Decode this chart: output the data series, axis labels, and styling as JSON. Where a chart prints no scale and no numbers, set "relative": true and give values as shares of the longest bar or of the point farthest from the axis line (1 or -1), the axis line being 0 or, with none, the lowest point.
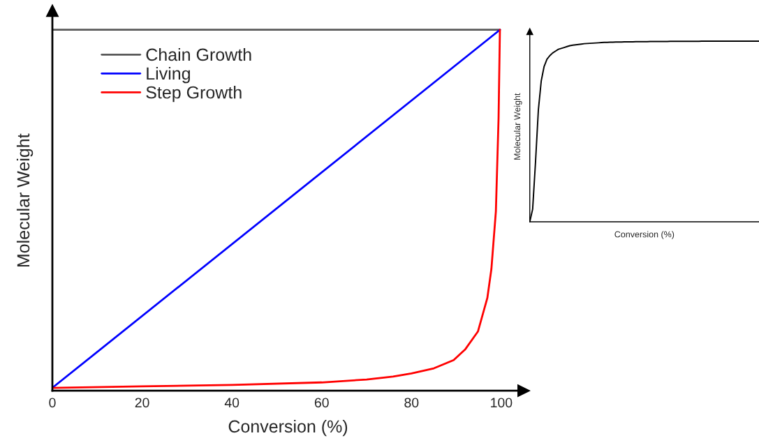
{
  "chart_data": [
    {
      "type": "line",
      "xlabel": "Conversion (%)",
      "ylabel": "Molecular Weight",
      "relative": true,
      "xlim": [
        0,
        105
      ],
      "xticks": [
        0,
        20,
        40,
        60,
        80,
        100
      ],
      "legend": "top left",
      "tick_labels": "x",
      "grid": false,
      "series": [
        {
          "name": "Chain Growth",
          "color": "#595959",
          "x": [
            0,
            99.7
          ],
          "values": [
            1,
            1
          ]
        },
        {
          "name": "Living",
          "color": "#0000ff",
          "x": [
            0,
            99.7
          ],
          "values": [
            0.008,
            1
          ]
        },
        {
          "name": "Step Growth",
          "color": "#ff0000",
          "x": [
            0,
            20,
            40,
            60,
            70,
            75.9,
            80,
            85,
            89.4,
            92,
            94.8,
            96.9,
            97.8,
            98.8,
            99.4,
            99.7
          ],
          "values": [
            0.008,
            0.012,
            0.016,
            0.023,
            0.031,
            0.039,
            0.048,
            0.062,
            0.085,
            0.115,
            0.164,
            0.257,
            0.337,
            0.497,
            0.755,
            1
          ]
        }
      ]
    },
    {
      "type": "line",
      "xlabel": "Conversion (%)",
      "ylabel": "Molecular Weight",
      "relative": true,
      "categories": [
        null,
        null,
        null,
        null,
        null,
        null,
        null,
        null,
        null,
        null,
        null,
        null,
        null,
        null,
        null,
        null,
        null,
        null,
        null,
        null,
        null,
        null,
        null,
        null,
        null,
        null,
        null,
        null,
        null,
        null,
        null,
        null,
        null,
        null,
        null,
        null,
        null,
        null,
        null,
        null,
        null,
        null,
        null,
        null,
        null,
        null,
        null,
        null,
        null,
        null,
        null,
        null,
        null,
        null,
        null,
        null,
        null,
        null,
        null,
        null,
        null,
        null,
        null,
        null,
        null,
        null,
        null,
        null,
        null,
        null,
        null,
        null,
        null,
        null,
        null,
        null,
        null,
        null,
        null,
        null,
        null
      ],
      "series": [
        {
          "color": "#000000",
          "values": [
            0,
            0.07,
            0.33,
            0.62,
            0.78,
            0.86,
            0.9,
            0.92,
            0.935,
            0.945,
            0.955,
            0.96,
            0.965,
            0.97,
            0.975,
            0.978,
            0.98,
            0.982,
            0.984,
            0.986,
            0.987,
            0.988,
            0.989,
            0.99,
            0.991,
            0.992,
            0.993,
            0.993,
            0.994,
            0.994,
            0.995,
            0.995,
            0.995,
            0.996,
            0.996,
            0.996,
            0.996,
            0.997,
            0.997,
            0.997,
            0.997,
            0.997,
            0.998,
            0.998,
            0.998,
            0.998,
            0.998,
            0.998,
            0.998,
            0.999,
            0.999,
            0.999,
            0.999,
            0.999,
            0.999,
            0.999,
            0.999,
            0.999,
            0.999,
            0.999,
            1,
            1,
            1,
            1,
            1,
            1,
            1,
            1,
            1,
            1,
            1,
            1,
            1,
            1,
            1,
            1,
            1,
            1,
            1,
            1,
            1
          ]
        }
      ]
    }
  ]
}
